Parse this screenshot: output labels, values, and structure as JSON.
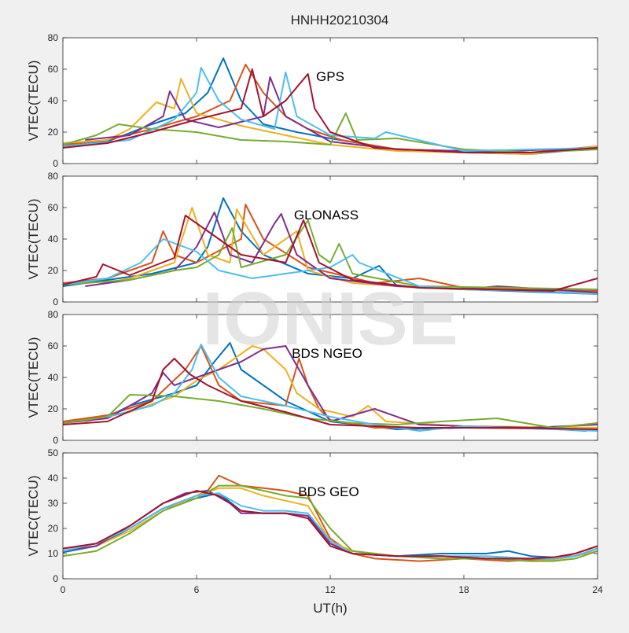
{
  "figure": {
    "title": "HNHH20210304",
    "watermark": "IONISE",
    "xlabel": "UT(h)",
    "background": "#f0f0f0",
    "axes_background": "#ffffff",
    "palette": [
      "#0072bd",
      "#d95319",
      "#edb120",
      "#7e2f8e",
      "#77ac30",
      "#4dbeee",
      "#a2142f"
    ]
  },
  "chart_data": [
    {
      "type": "line",
      "panel_label": "GPS",
      "ylabel": "VTEC(TECU)",
      "xlim": [
        0,
        24
      ],
      "ylim": [
        0,
        80
      ],
      "xticks": [
        0,
        6,
        12,
        18,
        24
      ],
      "yticks": [
        0,
        20,
        40,
        60,
        80
      ],
      "series": [
        {
          "color": "#0072bd",
          "x": [
            0,
            2,
            4,
            5.5,
            6.5,
            7.2,
            8,
            9,
            10.5,
            12,
            15,
            18,
            21,
            24
          ],
          "y": [
            11,
            14,
            25,
            32,
            45,
            67,
            40,
            25,
            20,
            16,
            9,
            7,
            6,
            10
          ]
        },
        {
          "color": "#d95319",
          "x": [
            0,
            2,
            4,
            6,
            7.5,
            8.2,
            9,
            10,
            11,
            12.5,
            15,
            18,
            21,
            24
          ],
          "y": [
            12,
            15,
            22,
            30,
            40,
            63,
            45,
            30,
            22,
            15,
            9,
            8,
            7,
            11
          ]
        },
        {
          "color": "#edb120",
          "x": [
            0,
            2,
            3,
            4.2,
            5,
            5.3,
            6,
            8,
            10,
            12,
            15,
            18,
            21,
            24
          ],
          "y": [
            13,
            15,
            22,
            39,
            35,
            54,
            32,
            24,
            18,
            12,
            8,
            7,
            6,
            11
          ]
        },
        {
          "color": "#7e2f8e",
          "x": [
            1,
            3,
            4.5,
            4.8,
            5.5,
            7,
            9,
            9.3,
            10,
            12,
            15,
            18,
            20,
            24
          ],
          "y": [
            15,
            18,
            30,
            46,
            28,
            23,
            30,
            55,
            30,
            14,
            9,
            8,
            8,
            10
          ]
        },
        {
          "color": "#77ac30",
          "x": [
            0,
            1.5,
            2.5,
            4,
            6,
            8,
            10,
            12,
            12.7,
            13.2,
            15,
            18,
            21,
            24
          ],
          "y": [
            12,
            18,
            25,
            22,
            20,
            15,
            14,
            12,
            32,
            15,
            16,
            9,
            7,
            9
          ]
        },
        {
          "color": "#4dbeee",
          "x": [
            0,
            3,
            5,
            6,
            6.2,
            7,
            8,
            9.5,
            10,
            10.5,
            12,
            14,
            14.5,
            18,
            24
          ],
          "y": [
            11,
            15,
            28,
            45,
            61,
            40,
            28,
            22,
            58,
            30,
            18,
            16,
            20,
            8,
            10
          ]
        },
        {
          "color": "#a2142f",
          "x": [
            0,
            2,
            4,
            6,
            8,
            8.5,
            9,
            10,
            11,
            11.3,
            12,
            14,
            18,
            21,
            24
          ],
          "y": [
            10,
            13,
            20,
            28,
            35,
            60,
            30,
            40,
            57,
            35,
            20,
            10,
            7,
            7,
            10
          ]
        }
      ]
    },
    {
      "type": "line",
      "panel_label": "GLONASS",
      "ylabel": "VTEC(TECU)",
      "xlim": [
        0,
        24
      ],
      "ylim": [
        0,
        80
      ],
      "xticks": [
        0,
        6,
        12,
        18,
        24
      ],
      "yticks": [
        0,
        20,
        40,
        60,
        80
      ],
      "series": [
        {
          "color": "#0072bd",
          "x": [
            0,
            2,
            4,
            6,
            6.5,
            7.2,
            8,
            9,
            11,
            13,
            14.2,
            15,
            18,
            24
          ],
          "y": [
            10,
            14,
            18,
            25,
            35,
            66,
            45,
            30,
            18,
            15,
            23,
            10,
            8,
            5
          ]
        },
        {
          "color": "#d95319",
          "x": [
            0,
            2,
            4,
            4.5,
            5,
            6,
            8,
            8.2,
            9,
            11,
            14,
            16,
            18,
            24
          ],
          "y": [
            12,
            15,
            25,
            45,
            30,
            25,
            40,
            62,
            40,
            22,
            12,
            15,
            9,
            7
          ]
        },
        {
          "color": "#edb120",
          "x": [
            1.5,
            3,
            5,
            5.8,
            6.5,
            7.5,
            7.8,
            9,
            10.5,
            11,
            13,
            16,
            18,
            24
          ],
          "y": [
            11,
            15,
            25,
            60,
            30,
            25,
            59,
            30,
            45,
            20,
            12,
            9,
            8,
            6
          ]
        },
        {
          "color": "#7e2f8e",
          "x": [
            1,
            3,
            5,
            6,
            6.8,
            7.5,
            8.5,
            9.5,
            9.8,
            10.5,
            12,
            15,
            18,
            19.5,
            24
          ],
          "y": [
            10,
            14,
            20,
            35,
            57,
            30,
            25,
            50,
            56,
            30,
            15,
            10,
            8,
            10,
            6
          ]
        },
        {
          "color": "#77ac30",
          "x": [
            0,
            3,
            5,
            6,
            7,
            7.6,
            8,
            10,
            11,
            11.5,
            12,
            12.4,
            13,
            16,
            24
          ],
          "y": [
            11,
            14,
            20,
            22,
            30,
            47,
            22,
            30,
            52,
            30,
            25,
            37,
            18,
            10,
            8
          ]
        },
        {
          "color": "#4dbeee",
          "x": [
            0,
            2,
            3.5,
            4.5,
            6,
            7,
            8.5,
            10,
            12,
            13,
            13.3,
            16,
            18,
            21,
            24
          ],
          "y": [
            11,
            15,
            25,
            40,
            32,
            20,
            15,
            18,
            22,
            30,
            25,
            10,
            8,
            7,
            5
          ]
        },
        {
          "color": "#a2142f",
          "x": [
            0,
            1.5,
            1.8,
            3,
            5,
            5.5,
            6.5,
            8,
            10,
            10.8,
            11.5,
            13,
            16,
            22,
            24
          ],
          "y": [
            11,
            16,
            24,
            17,
            28,
            55,
            45,
            30,
            25,
            52,
            25,
            14,
            9,
            7,
            15
          ]
        }
      ]
    },
    {
      "type": "line",
      "panel_label": "BDS NGEO",
      "ylabel": "VTEC(TECU)",
      "xlim": [
        0,
        24
      ],
      "ylim": [
        0,
        80
      ],
      "xticks": [
        0,
        6,
        12,
        18,
        24
      ],
      "yticks": [
        0,
        20,
        40,
        60,
        80
      ],
      "series": [
        {
          "color": "#0072bd",
          "x": [
            0,
            2,
            3,
            5,
            6,
            6.8,
            7.5,
            8,
            10,
            12,
            15,
            18,
            21,
            23.5
          ],
          "y": [
            11,
            15,
            22,
            30,
            35,
            50,
            62,
            45,
            25,
            12,
            7,
            8,
            8,
            6
          ]
        },
        {
          "color": "#d95319",
          "x": [
            0,
            2,
            4,
            5.5,
            6.2,
            7,
            8,
            10,
            10.6,
            11,
            11.5,
            12,
            14,
            18,
            24
          ],
          "y": [
            12,
            16,
            25,
            45,
            60,
            35,
            25,
            22,
            52,
            35,
            20,
            13,
            8,
            8,
            7
          ]
        },
        {
          "color": "#edb120",
          "x": [
            1,
            3,
            5,
            6,
            7,
            8,
            8.5,
            9,
            10,
            10.5,
            11.5,
            13,
            13.7,
            14.5,
            18,
            24
          ],
          "y": [
            12,
            18,
            28,
            38,
            45,
            55,
            60,
            58,
            45,
            30,
            20,
            15,
            22,
            12,
            9,
            8
          ]
        },
        {
          "color": "#7e2f8e",
          "x": [
            0,
            2,
            4,
            4.5,
            5,
            6,
            7,
            8,
            9,
            10,
            11,
            12,
            14,
            16,
            18,
            21,
            24
          ],
          "y": [
            11,
            14,
            30,
            43,
            35,
            40,
            45,
            50,
            58,
            60,
            35,
            12,
            20,
            10,
            9,
            8,
            10
          ]
        },
        {
          "color": "#77ac30",
          "x": [
            0,
            2,
            3,
            5,
            7,
            9,
            11,
            13,
            15,
            17,
            19.5,
            22,
            24
          ],
          "y": [
            11,
            15,
            29,
            28,
            25,
            20,
            14,
            11,
            10,
            12,
            14,
            8,
            11
          ]
        },
        {
          "color": "#4dbeee",
          "x": [
            2,
            4,
            5,
            5.8,
            6.2,
            7,
            8,
            10,
            12,
            14,
            16,
            18,
            20,
            24
          ],
          "y": [
            15,
            22,
            30,
            45,
            61,
            40,
            28,
            22,
            15,
            10,
            6,
            9,
            8,
            6
          ]
        },
        {
          "color": "#a2142f",
          "x": [
            0,
            2,
            4,
            4.5,
            5,
            5.7,
            6.5,
            8,
            10,
            12,
            16,
            20,
            24
          ],
          "y": [
            10,
            12,
            25,
            45,
            52,
            42,
            35,
            25,
            18,
            10,
            8,
            8,
            7
          ]
        }
      ]
    },
    {
      "type": "line",
      "panel_label": "BDS GEO",
      "ylabel": "VTEC(TECU)",
      "xlim": [
        0,
        24
      ],
      "ylim": [
        0,
        50
      ],
      "xticks": [
        0,
        6,
        12,
        18,
        24
      ],
      "yticks": [
        0,
        10,
        20,
        30,
        40,
        50
      ],
      "series": [
        {
          "color": "#0072bd",
          "x": [
            0,
            1.5,
            3,
            4.5,
            6,
            7,
            8,
            9,
            10,
            11,
            12,
            13,
            15,
            17,
            19,
            20,
            21,
            22,
            23,
            24
          ],
          "y": [
            10.5,
            13,
            20,
            28,
            32,
            34,
            27,
            26,
            26,
            25,
            14,
            10,
            9,
            10,
            10,
            11,
            9,
            8.5,
            9,
            12
          ]
        },
        {
          "color": "#d95319",
          "x": [
            0,
            1.5,
            3,
            4.5,
            6,
            6.5,
            7,
            8,
            9,
            10,
            11,
            12,
            13,
            14,
            16,
            18,
            20,
            22,
            23,
            24
          ],
          "y": [
            12,
            14,
            20,
            28,
            33,
            35,
            41,
            37,
            36,
            35,
            33,
            16,
            10,
            8,
            7,
            8,
            7,
            8,
            10,
            13
          ]
        },
        {
          "color": "#edb120",
          "x": [
            0,
            1.5,
            3,
            4.5,
            6,
            7,
            8,
            9,
            10,
            11,
            12,
            13,
            15,
            17,
            19,
            21,
            22,
            23,
            24
          ],
          "y": [
            11,
            13,
            19,
            27,
            33,
            36,
            36,
            33,
            31,
            29,
            15,
            11,
            9,
            8,
            8,
            7,
            7.5,
            9,
            11
          ]
        },
        {
          "color": "#7e2f8e",
          "x": [
            0,
            1.5,
            3,
            4.5,
            5.5,
            6.5,
            7.5,
            8,
            9,
            10,
            11,
            12,
            13,
            15,
            17,
            19,
            21,
            22,
            23,
            24
          ],
          "y": [
            11,
            13,
            21,
            30,
            34,
            35,
            30,
            26,
            26,
            26,
            25,
            14,
            10,
            9,
            9,
            8,
            8,
            8,
            9,
            12
          ]
        },
        {
          "color": "#77ac30",
          "x": [
            0,
            1.5,
            3,
            4.5,
            6,
            7,
            8,
            9,
            10,
            11,
            12,
            13,
            15,
            17,
            19,
            21,
            22,
            23,
            24
          ],
          "y": [
            9,
            11,
            18,
            27,
            32,
            37,
            37,
            35,
            33,
            32,
            20,
            11,
            9,
            8,
            8,
            7,
            7,
            8,
            11
          ]
        },
        {
          "color": "#4dbeee",
          "x": [
            0,
            1.5,
            3,
            4.5,
            6,
            7,
            8,
            9,
            10,
            11,
            12,
            13,
            15,
            17,
            19,
            21,
            22,
            23,
            24
          ],
          "y": [
            11,
            14,
            20,
            28,
            33,
            34,
            29,
            27,
            27,
            26,
            15,
            10,
            9,
            9,
            9,
            8,
            8,
            9,
            12
          ]
        },
        {
          "color": "#a2142f",
          "x": [
            0,
            1.5,
            3,
            4.5,
            6,
            7,
            8,
            9,
            10,
            11,
            12,
            13,
            15,
            17,
            19,
            21,
            22,
            23,
            24
          ],
          "y": [
            12,
            14,
            21,
            30,
            35,
            33,
            27,
            26,
            26,
            24,
            13,
            10,
            9,
            9,
            8,
            8,
            8.5,
            10,
            13
          ]
        }
      ]
    }
  ]
}
